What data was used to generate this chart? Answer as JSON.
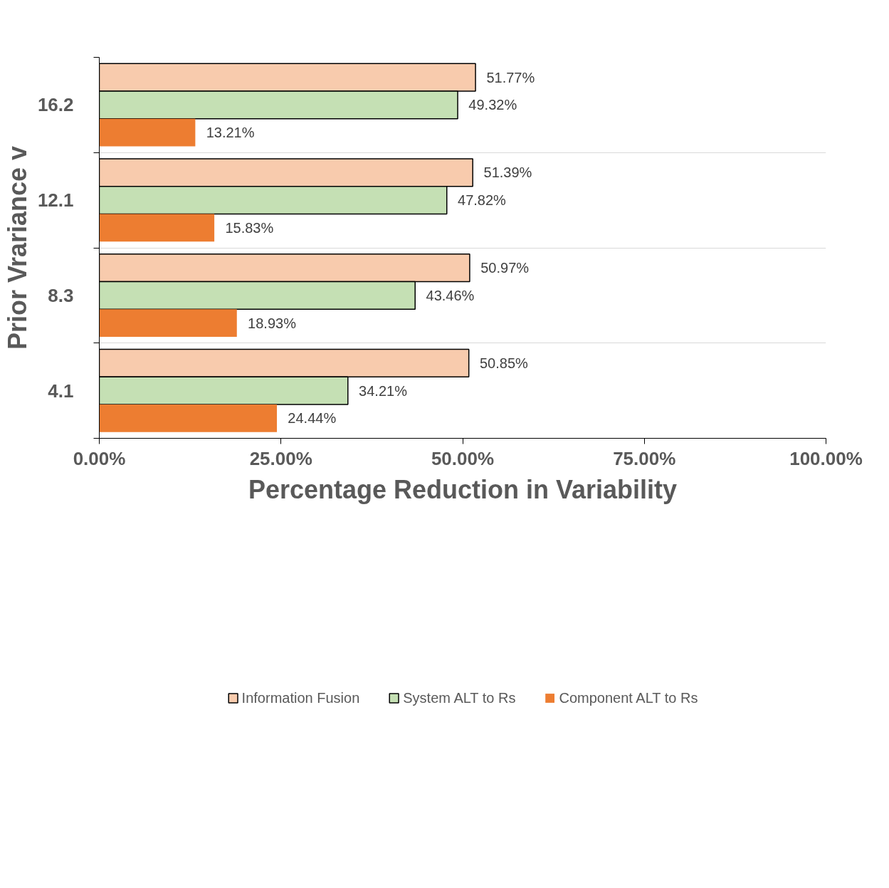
{
  "chart_data": {
    "type": "bar",
    "orientation": "horizontal",
    "xlabel": "Percentage Reduction in Variability",
    "ylabel": "Prior Vrariance v",
    "categories": [
      "16.2",
      "12.1",
      "8.3",
      "4.1"
    ],
    "series": [
      {
        "name": "Information Fusion",
        "color": "#f8cbad",
        "values": [
          51.77,
          51.39,
          50.97,
          50.85
        ],
        "value_labels": [
          "51.77%",
          "51.39%",
          "50.97%",
          "50.85%"
        ]
      },
      {
        "name": "System ALT to Rs",
        "color": "#c5e0b4",
        "values": [
          49.32,
          47.82,
          43.46,
          34.21
        ],
        "value_labels": [
          "49.32%",
          "47.82%",
          "43.46%",
          "34.21%"
        ]
      },
      {
        "name": "Component ALT to Rs",
        "color": "#ed7d31",
        "values": [
          13.21,
          15.83,
          18.93,
          24.44
        ],
        "value_labels": [
          "13.21%",
          "15.83%",
          "18.93%",
          "24.44%"
        ]
      }
    ],
    "xlim": [
      0,
      100
    ],
    "xticks": [
      {
        "value": 0,
        "label": "0.00%"
      },
      {
        "value": 25,
        "label": "25.00%"
      },
      {
        "value": 50,
        "label": "50.00%"
      },
      {
        "value": 75,
        "label": "75.00%"
      },
      {
        "value": 100,
        "label": "100.00%"
      }
    ],
    "grid": "y",
    "legend": "bottom"
  }
}
